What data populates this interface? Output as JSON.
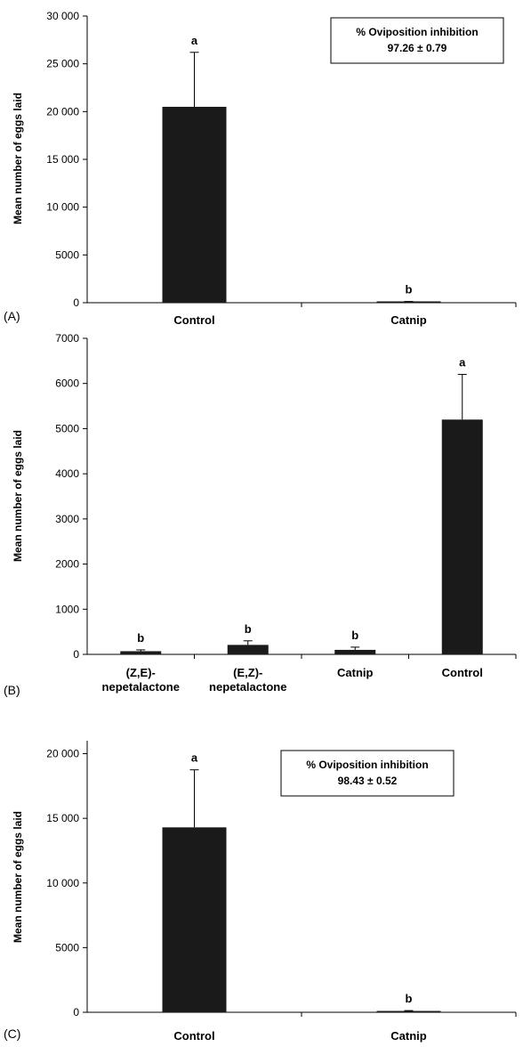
{
  "chart_data": [
    {
      "panel": "(A)",
      "type": "bar",
      "ylabel": "Mean number of eggs laid",
      "ylim": [
        0,
        30000
      ],
      "yticks": [
        0,
        5000,
        10000,
        15000,
        20000,
        25000,
        30000
      ],
      "ytick_labels": [
        "0",
        "5000",
        "10 000",
        "15 000",
        "20 000",
        "25 000",
        "30 000"
      ],
      "categories": [
        [
          "Control"
        ],
        [
          "Catnip"
        ]
      ],
      "values": [
        20500,
        100
      ],
      "errors": [
        5700,
        30
      ],
      "significance": [
        "a",
        "b"
      ],
      "annotation": {
        "line1": "% Oviposition inhibition",
        "line2": "97.26 ± 0.79"
      },
      "bar_color": "#1a1a1a"
    },
    {
      "panel": "(B)",
      "type": "bar",
      "ylabel": "Mean number of eggs laid",
      "ylim": [
        0,
        7000
      ],
      "yticks": [
        0,
        1000,
        2000,
        3000,
        4000,
        5000,
        6000,
        7000
      ],
      "ytick_labels": [
        "0",
        "1000",
        "2000",
        "3000",
        "4000",
        "5000",
        "6000",
        "7000"
      ],
      "categories": [
        [
          "(Z,E)-",
          "nepetalactone"
        ],
        [
          "(E,Z)-",
          "nepetalactone"
        ],
        [
          "Catnip"
        ],
        [
          "Control"
        ]
      ],
      "values": [
        70,
        210,
        100,
        5200
      ],
      "errors": [
        30,
        90,
        60,
        1000
      ],
      "significance": [
        "b",
        "b",
        "b",
        "a"
      ],
      "bar_color": "#1a1a1a"
    },
    {
      "panel": "(C)",
      "type": "bar",
      "ylabel": "Mean number of eggs laid",
      "ylim": [
        0,
        21000
      ],
      "yticks": [
        0,
        5000,
        10000,
        15000,
        20000
      ],
      "ytick_labels": [
        "0",
        "5000",
        "10 000",
        "15 000",
        "20 000"
      ],
      "categories": [
        [
          "Control"
        ],
        [
          "Catnip"
        ]
      ],
      "values": [
        14300,
        100
      ],
      "errors": [
        4450,
        30
      ],
      "significance": [
        "a",
        "b"
      ],
      "annotation": {
        "line1": "% Oviposition inhibition",
        "line2": "98.43 ± 0.52"
      },
      "bar_color": "#1a1a1a"
    }
  ]
}
